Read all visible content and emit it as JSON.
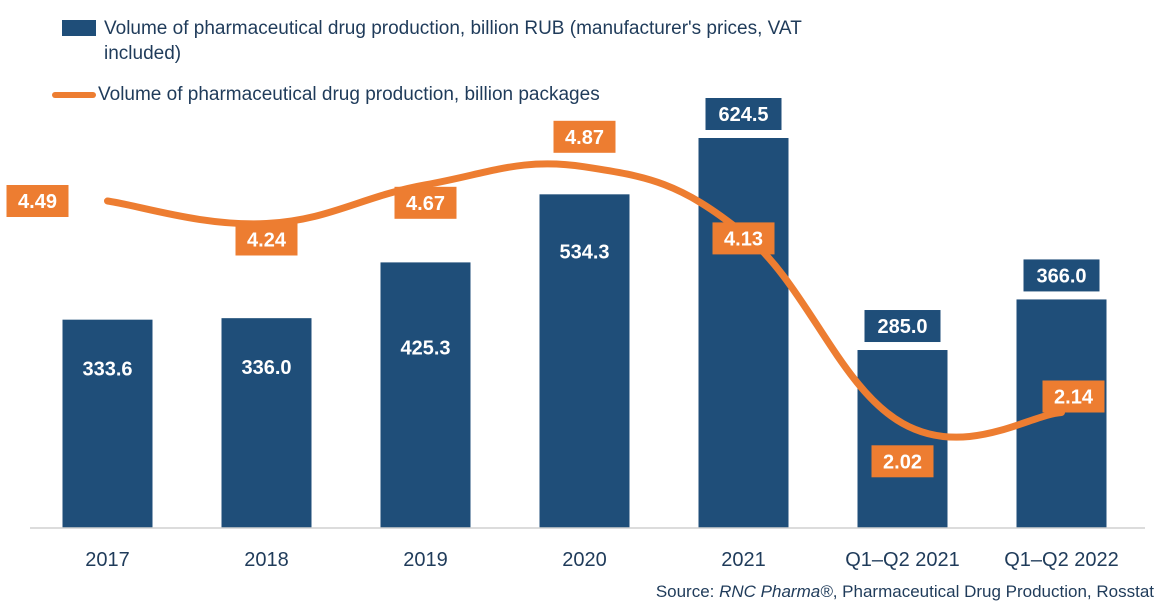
{
  "legend": {
    "bar_label": "Volume of pharmaceutical drug production, billion RUB (manufacturer's prices, VAT included)",
    "line_label": "Volume of pharmaceutical drug production, billion packages"
  },
  "source": {
    "prefix": "Source: ",
    "brand": "RNC Pharma®",
    "rest": ", Pharmaceutical Drug Production, Rosstat"
  },
  "colors": {
    "bar": "#1f4e79",
    "line": "#ed7d31",
    "text": "#1f3b5a"
  },
  "chart_data": {
    "type": "bar",
    "categories": [
      "2017",
      "2018",
      "2019",
      "2020",
      "2021",
      "Q1–Q2 2021",
      "Q1–Q2 2022"
    ],
    "series": [
      {
        "name": "Volume of pharmaceutical drug production, billion RUB (manufacturer's prices, VAT included)",
        "type": "bar",
        "values": [
          333.6,
          336.0,
          425.3,
          534.3,
          624.5,
          285.0,
          366.0
        ],
        "labels": [
          "333.6",
          "336.0",
          "425.3",
          "534.3",
          "624.5",
          "285.0",
          "366.0"
        ]
      },
      {
        "name": "Volume of pharmaceutical drug production, billion packages",
        "type": "line",
        "values": [
          4.49,
          4.24,
          4.67,
          4.87,
          4.13,
          2.02,
          2.14
        ],
        "labels": [
          "4.49",
          "4.24",
          "4.67",
          "4.87",
          "4.13",
          "2.02",
          "2.14"
        ]
      }
    ],
    "grid": false,
    "legend_position": "top-left"
  }
}
